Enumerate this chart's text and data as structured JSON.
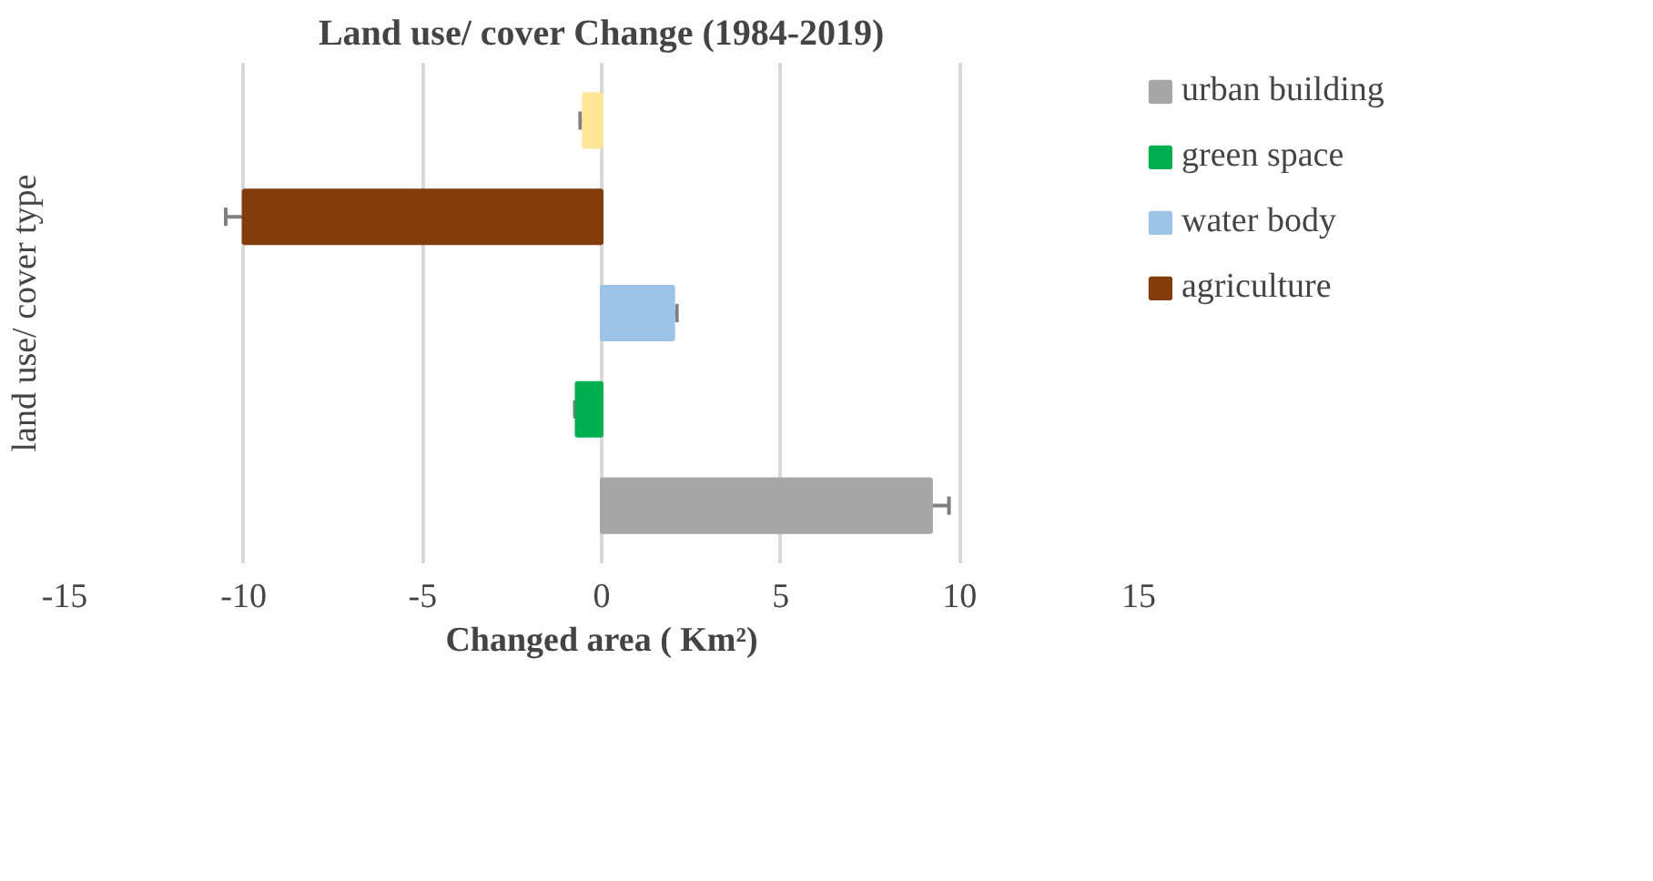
{
  "chart_data": {
    "type": "bar",
    "orientation": "horizontal",
    "title": "Land use/ cover Change (1984-2019)",
    "xlabel": "Changed area ( Km²)",
    "ylabel": "land use/ cover type",
    "categories": [
      null,
      null,
      null,
      null,
      null
    ],
    "series": [
      {
        "color": "#ffe699",
        "values": [
          -0.5,
          null,
          null,
          null,
          null
        ],
        "errors": [
          0.1,
          null,
          null,
          null,
          null
        ]
      },
      {
        "name": "agriculture",
        "color": "#843c0c",
        "values": [
          null,
          -10.0,
          null,
          null,
          null
        ],
        "errors": [
          null,
          0.5,
          null,
          null,
          null
        ]
      },
      {
        "name": "water body",
        "color": "#9dc3e6",
        "values": [
          null,
          null,
          2.0,
          null,
          null
        ],
        "errors": [
          null,
          null,
          0.1,
          null,
          null
        ]
      },
      {
        "name": "green space",
        "color": "#00b050",
        "values": [
          null,
          null,
          null,
          -0.7,
          null
        ],
        "errors": [
          null,
          null,
          null,
          0.05,
          null
        ]
      },
      {
        "name": "urban building",
        "color": "#a6a6a6",
        "values": [
          null,
          null,
          null,
          null,
          9.2
        ],
        "errors": [
          null,
          null,
          null,
          null,
          0.5
        ]
      }
    ],
    "xlim": [
      -15,
      15
    ],
    "xticks": [
      -15,
      -10,
      -5,
      0,
      5,
      10,
      15
    ],
    "grid": "x",
    "legend": "right"
  }
}
